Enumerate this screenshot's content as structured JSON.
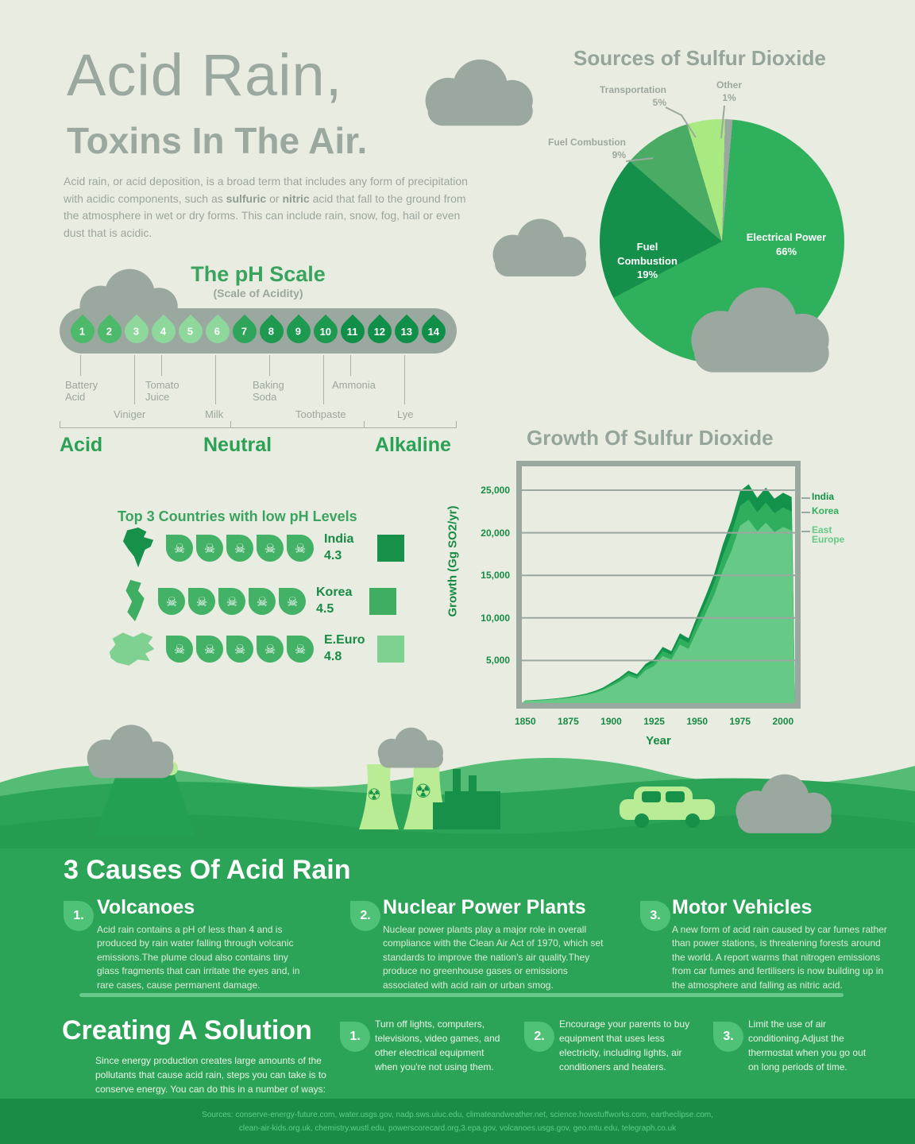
{
  "header": {
    "title_line1": "Acid Rain,",
    "title_line2": "Toxins In The Air.",
    "intro": {
      "pre": "Acid rain, or acid deposition, is a broad term that includes any form of precipitation with acidic components, such as ",
      "bold1": "sulfuric",
      "mid": " or ",
      "bold2": "nitric",
      "post": " acid that fall to the ground from the atmosphere in wet or dry forms. This can include rain, snow, fog, hail or even dust that is acidic."
    }
  },
  "pie_section": {
    "title": "Sources of Sulfur Dioxide",
    "inside_labels": [
      {
        "name": "Electrical Power",
        "pct": "66%"
      },
      {
        "name": "Fuel Combustion",
        "pct": "19%"
      }
    ],
    "outside_labels": [
      {
        "name": "Transportation",
        "pct": "5%"
      },
      {
        "name": "Other",
        "pct": "1%"
      },
      {
        "name": "Fuel Combustion",
        "pct": "9%"
      }
    ]
  },
  "ph_scale": {
    "title": "The pH Scale",
    "subtitle": "(Scale of Acidity)",
    "values": [
      "1",
      "2",
      "3",
      "4",
      "5",
      "6",
      "7",
      "8",
      "9",
      "10",
      "11",
      "12",
      "13",
      "14"
    ],
    "drop_colors": [
      "#4cb96b",
      "#4cb96b",
      "#8ed89b",
      "#8ed89b",
      "#8ed89b",
      "#8ed89b",
      "#2fa55c",
      "#1d9950",
      "#1d9950",
      "#1d9950",
      "#0f8f47",
      "#0f8f47",
      "#0f8f47",
      "#0f8f47"
    ],
    "item_labels": [
      "Battery Acid",
      "Viniger",
      "Tomato Juice",
      "Milk",
      "Baking Soda",
      "Toothpaste",
      "Ammonia",
      "Lye"
    ],
    "zones": [
      "Acid",
      "Neutral",
      "Alkaline"
    ]
  },
  "countries": {
    "title": "Top 3 Countries with low pH Levels",
    "skulls_per_row": 5,
    "rows": [
      {
        "name": "India",
        "ph": "4.3",
        "swatch": "#17914a"
      },
      {
        "name": "Korea",
        "ph": "4.5",
        "swatch": "#3fae63"
      },
      {
        "name": "E.Euro",
        "ph": "4.8",
        "swatch": "#7fd191"
      }
    ]
  },
  "chart_data": [
    {
      "type": "pie",
      "title": "Sources of Sulfur Dioxide",
      "slices": [
        {
          "label": "Electrical Power",
          "value": 66,
          "color": "#2eb05c"
        },
        {
          "label": "Fuel Combustion",
          "value": 19,
          "color": "#15904a"
        },
        {
          "label": "Fuel Combustion",
          "value": 9,
          "color": "#4aac64"
        },
        {
          "label": "Transportation",
          "value": 5,
          "color": "#a9e982"
        },
        {
          "label": "Other",
          "value": 1,
          "color": "#9BA8A0"
        }
      ]
    },
    {
      "type": "area",
      "title": "Growth Of Sulfur Dioxide",
      "xlabel": "Year",
      "ylabel": "Growth (Gg SO2/yr)",
      "ylim": [
        0,
        27800
      ],
      "x": [
        1850,
        1855,
        1860,
        1865,
        1870,
        1875,
        1880,
        1885,
        1890,
        1895,
        1900,
        1905,
        1910,
        1915,
        1920,
        1925,
        1930,
        1935,
        1940,
        1945,
        1950,
        1955,
        1960,
        1965,
        1970,
        1975,
        1980,
        1985,
        1990,
        1995,
        2000,
        2005
      ],
      "x_ticks": [
        1850,
        1875,
        1900,
        1925,
        1950,
        1975,
        2000
      ],
      "y_ticks": [
        5000,
        10000,
        15000,
        20000,
        25000
      ],
      "y_tick_labels": [
        "5,000",
        "10,000",
        "15,000",
        "20,000",
        "25,000"
      ],
      "grid": true,
      "legend_position": "right",
      "series": [
        {
          "name": "India",
          "color": "#12924a",
          "values": [
            300,
            360,
            420,
            500,
            600,
            720,
            900,
            1100,
            1400,
            1800,
            2400,
            3000,
            3800,
            3400,
            4600,
            5200,
            6600,
            6100,
            8200,
            7600,
            10200,
            12600,
            15200,
            18600,
            21400,
            24900,
            25700,
            24100,
            25300,
            24000,
            24700,
            24200
          ]
        },
        {
          "name": "Korea",
          "color": "#2fae5d",
          "values": [
            280,
            335,
            390,
            465,
            560,
            670,
            840,
            1020,
            1300,
            1670,
            2230,
            2790,
            3540,
            3160,
            4280,
            4840,
            6140,
            5680,
            7630,
            7070,
            9490,
            11720,
            14140,
            17300,
            19900,
            23160,
            23900,
            22420,
            23530,
            22320,
            22970,
            22510
          ]
        },
        {
          "name": "East Europe",
          "color": "#66c986",
          "values": [
            250,
            300,
            350,
            420,
            500,
            600,
            760,
            920,
            1170,
            1500,
            2010,
            2510,
            3190,
            2850,
            3850,
            4360,
            5530,
            5110,
            6870,
            6360,
            8540,
            10550,
            12730,
            15570,
            17910,
            20840,
            21510,
            20180,
            21180,
            20090,
            20670,
            20260
          ]
        }
      ]
    }
  ],
  "causes": {
    "title": "3 Causes Of Acid Rain",
    "items": [
      {
        "num": "1.",
        "heading": "Volcanoes",
        "text": "Acid rain contains a pH of less than 4 and is produced by rain water falling through volcanic emissions.The plume cloud also contains tiny glass fragments that can irritate the eyes and, in rare cases, cause permanent damage."
      },
      {
        "num": "2.",
        "heading": "Nuclear Power Plants",
        "text": "Nuclear power plants play a major role in overall compliance with the Clean Air Act of 1970, which set standards to improve the nation's air quality.They produce no greenhouse gases or emissions associated with acid rain or urban smog."
      },
      {
        "num": "3.",
        "heading": "Motor Vehicles",
        "text": "A new form of acid rain caused by car fumes rather than power stations, is threatening forests around the world. A report warms that nitrogen emissions from car fumes and fertilisers is now building up in the atmosphere and falling as nitric acid."
      }
    ]
  },
  "solution": {
    "title": "Creating A Solution",
    "intro": "Since energy production creates large amounts of the pollutants that cause acid rain, steps you can take is to conserve energy. You can do this in a number of ways:",
    "tips": [
      {
        "num": "1.",
        "text": "Turn off lights, computers, televisions, video games, and other electrical equipment when you're not using them."
      },
      {
        "num": "2.",
        "text": "Encourage your parents to buy equipment that uses less electricity, including lights, air conditioners and heaters."
      },
      {
        "num": "3.",
        "text": "Limit the use of air conditioning.Adjust the thermostat when you go out on long periods of time."
      }
    ]
  },
  "footer": {
    "line1": "Sources:  conserve-energy-future.com, water.usgs.gov, nadp.sws.uiuc.edu, climateandweather.net, science.howstuffworks.com, eartheclipse.com,",
    "line2": "clean-air-kids.org.uk, chemistry.wustl.edu, powerscorecard.org,3.epa.gov, volcanoes.usgs.gov, geo.mtu.edu, telegraph.co.uk"
  },
  "colors": {
    "background": "#e9ece0",
    "gray": "#9BA8A0",
    "green_main": "#2ba458",
    "green_dark": "#17914a",
    "green_light": "#b9ec95"
  }
}
